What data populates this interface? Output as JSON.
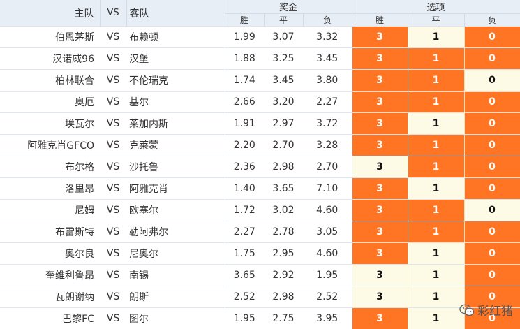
{
  "header": {
    "home": "主队",
    "vs": "VS",
    "away": "客队",
    "odds_group": "奖金",
    "options_group": "选项",
    "win": "胜",
    "draw": "平",
    "lose": "负"
  },
  "rows": [
    {
      "home": "伯恩茅斯",
      "vs": "VS",
      "away": "布赖顿",
      "win": "1.99",
      "draw": "3.07",
      "lose": "3.32",
      "o_win": "3",
      "o_draw": "1",
      "o_lose": "0",
      "sel": [
        true,
        false,
        true
      ]
    },
    {
      "home": "汉诺威96",
      "vs": "VS",
      "away": "汉堡",
      "win": "1.88",
      "draw": "3.25",
      "lose": "3.45",
      "o_win": "3",
      "o_draw": "1",
      "o_lose": "0",
      "sel": [
        true,
        true,
        true
      ]
    },
    {
      "home": "柏林联合",
      "vs": "VS",
      "away": "不伦瑞克",
      "win": "1.74",
      "draw": "3.45",
      "lose": "3.80",
      "o_win": "3",
      "o_draw": "1",
      "o_lose": "0",
      "sel": [
        true,
        true,
        false
      ]
    },
    {
      "home": "奥厄",
      "vs": "VS",
      "away": "基尔",
      "win": "2.66",
      "draw": "3.20",
      "lose": "2.27",
      "o_win": "3",
      "o_draw": "1",
      "o_lose": "0",
      "sel": [
        true,
        true,
        true
      ]
    },
    {
      "home": "埃瓦尔",
      "vs": "VS",
      "away": "莱加内斯",
      "win": "1.91",
      "draw": "2.97",
      "lose": "3.72",
      "o_win": "3",
      "o_draw": "1",
      "o_lose": "0",
      "sel": [
        true,
        false,
        true
      ]
    },
    {
      "home": "阿雅克肖GFCO",
      "vs": "VS",
      "away": "克莱蒙",
      "win": "2.20",
      "draw": "2.70",
      "lose": "3.28",
      "o_win": "3",
      "o_draw": "1",
      "o_lose": "0",
      "sel": [
        true,
        true,
        true
      ]
    },
    {
      "home": "布尔格",
      "vs": "VS",
      "away": "沙托鲁",
      "win": "2.36",
      "draw": "2.98",
      "lose": "2.70",
      "o_win": "3",
      "o_draw": "1",
      "o_lose": "0",
      "sel": [
        false,
        true,
        true
      ]
    },
    {
      "home": "洛里昂",
      "vs": "VS",
      "away": "阿雅克肖",
      "win": "1.40",
      "draw": "3.65",
      "lose": "7.10",
      "o_win": "3",
      "o_draw": "1",
      "o_lose": "0",
      "sel": [
        true,
        false,
        true
      ]
    },
    {
      "home": "尼姆",
      "vs": "VS",
      "away": "欧塞尔",
      "win": "1.72",
      "draw": "3.02",
      "lose": "4.60",
      "o_win": "3",
      "o_draw": "1",
      "o_lose": "0",
      "sel": [
        true,
        true,
        false
      ]
    },
    {
      "home": "布雷斯特",
      "vs": "VS",
      "away": "勒阿弗尔",
      "win": "2.27",
      "draw": "2.78",
      "lose": "3.05",
      "o_win": "3",
      "o_draw": "1",
      "o_lose": "0",
      "sel": [
        true,
        true,
        true
      ]
    },
    {
      "home": "奥尔良",
      "vs": "VS",
      "away": "尼奥尔",
      "win": "1.75",
      "draw": "2.95",
      "lose": "4.60",
      "o_win": "3",
      "o_draw": "1",
      "o_lose": "0",
      "sel": [
        true,
        false,
        true
      ]
    },
    {
      "home": "奎维利鲁昂",
      "vs": "VS",
      "away": "南锡",
      "win": "3.65",
      "draw": "2.92",
      "lose": "1.95",
      "o_win": "3",
      "o_draw": "1",
      "o_lose": "0",
      "sel": [
        false,
        false,
        true
      ]
    },
    {
      "home": "瓦朗谢纳",
      "vs": "VS",
      "away": "朗斯",
      "win": "2.52",
      "draw": "2.98",
      "lose": "2.52",
      "o_win": "3",
      "o_draw": "1",
      "o_lose": "0",
      "sel": [
        false,
        false,
        true
      ]
    },
    {
      "home": "巴黎FC",
      "vs": "VS",
      "away": "图尔",
      "win": "1.95",
      "draw": "2.75",
      "lose": "3.95",
      "o_win": "3",
      "o_draw": "1",
      "o_lose": "0",
      "sel": [
        true,
        false,
        true
      ]
    }
  ],
  "watermark": {
    "text": "彩红猪",
    "icon": "wechat-icon"
  },
  "colors": {
    "selected": "#ff7523",
    "unselected": "#fdfae6",
    "header": "#e8eef6"
  }
}
